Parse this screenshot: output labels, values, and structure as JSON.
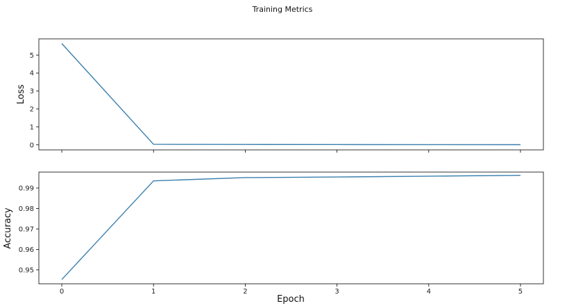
{
  "chart_data": {
    "type": "line",
    "title": "Training Metrics",
    "xlabel": "Epoch",
    "x": [
      0,
      1,
      2,
      3,
      4,
      5
    ],
    "xlim": [
      -0.25,
      5.25
    ],
    "x_ticks": [
      0,
      1,
      2,
      3,
      4,
      5
    ],
    "line_color": "#3a7fad",
    "grid": false,
    "panels": [
      {
        "ylabel": "Loss",
        "ylim": [
          -0.28,
          5.9
        ],
        "y_ticks": [
          0,
          1,
          2,
          3,
          4,
          5
        ],
        "values": [
          5.64,
          0.03,
          0.02,
          0.015,
          0.012,
          0.01
        ],
        "show_x_tick_labels": false
      },
      {
        "ylabel": "Accuracy",
        "ylim": [
          0.9432,
          0.9978
        ],
        "y_ticks": [
          0.95,
          0.96,
          0.97,
          0.98,
          0.99
        ],
        "values": [
          0.9453,
          0.9935,
          0.9951,
          0.9954,
          0.9958,
          0.9962
        ],
        "show_x_tick_labels": true
      }
    ]
  }
}
